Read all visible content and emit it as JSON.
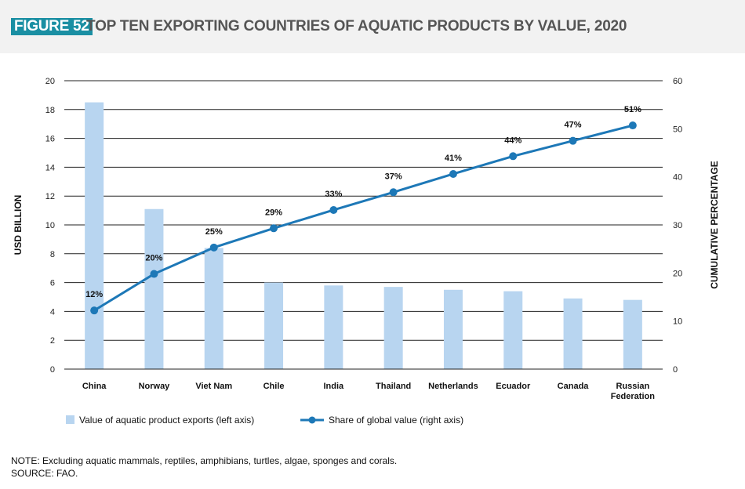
{
  "figure": {
    "label": "FIGURE 52",
    "title": "TOP TEN EXPORTING COUNTRIES OF AQUATIC PRODUCTS BY VALUE, 2020"
  },
  "notes": {
    "note": "NOTE: Excluding aquatic mammals, reptiles, amphibians, turtles, algae, sponges and corals.",
    "source": "SOURCE: FAO."
  },
  "colors": {
    "bar": "#b8d5f0",
    "line": "#1d78b7",
    "badge": "#1a8fa3"
  },
  "chart_data": {
    "type": "bar",
    "categories": [
      "China",
      "Norway",
      "Viet Nam",
      "Chile",
      "India",
      "Thailand",
      "Netherlands",
      "Ecuador",
      "Canada",
      "Russian Federation"
    ],
    "category_lines": [
      [
        "China"
      ],
      [
        "Norway"
      ],
      [
        "Viet Nam"
      ],
      [
        "Chile"
      ],
      [
        "India"
      ],
      [
        "Thailand"
      ],
      [
        "Netherlands"
      ],
      [
        "Ecuador"
      ],
      [
        "Canada"
      ],
      [
        "Russian",
        "Federation"
      ]
    ],
    "series": [
      {
        "name": "Value of aquatic product exports (left axis)",
        "type": "bar",
        "axis": "left",
        "values": [
          18.5,
          11.1,
          8.4,
          6.0,
          5.8,
          5.7,
          5.5,
          5.4,
          4.9,
          4.8
        ]
      },
      {
        "name": "Share of global value (right axis)",
        "type": "line",
        "axis": "right",
        "values": [
          12.2,
          19.8,
          25.3,
          29.3,
          33.1,
          36.8,
          40.6,
          44.3,
          47.5,
          50.7
        ],
        "labels": [
          "12%",
          "20%",
          "25%",
          "29%",
          "33%",
          "37%",
          "41%",
          "44%",
          "47%",
          "51%"
        ]
      }
    ],
    "ylabel": "USD BILLION",
    "y2label": "CUMULATIVE PERCENTAGE",
    "ylim": [
      0,
      20
    ],
    "y2lim": [
      0,
      60
    ],
    "yticks": [
      0,
      2,
      4,
      6,
      8,
      10,
      12,
      14,
      16,
      18,
      20
    ],
    "y2ticks": [
      0,
      10,
      20,
      30,
      40,
      50,
      60
    ],
    "grid": true,
    "legend_position": "bottom"
  }
}
